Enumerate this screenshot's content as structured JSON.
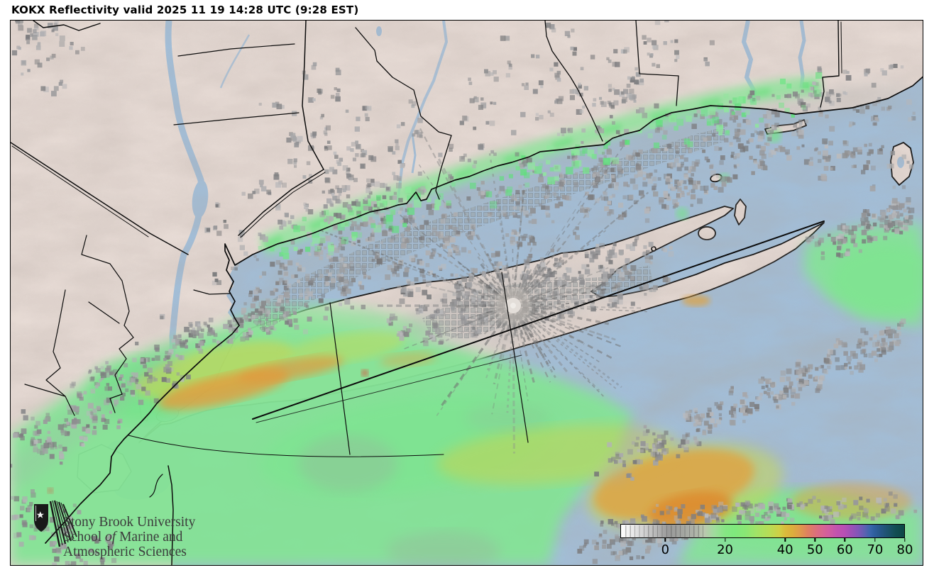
{
  "title": "KOKX Reflectivity valid 2025 11 19 14:28 UTC (9:28 EST)",
  "logo": {
    "line1": "Stony Brook University",
    "line2_pre": "School ",
    "line2_italic": "of",
    "line2_post": " Marine and",
    "line3": "Atmospheric Sciences"
  },
  "colorbar": {
    "tick_labels": [
      "0",
      "20",
      "40",
      "50",
      "60",
      "70",
      "80"
    ],
    "tick_positions_pct": [
      15.8,
      36.8,
      57.9,
      68.4,
      78.9,
      89.5,
      100
    ]
  },
  "colors": {
    "water": "#a2bfda",
    "land": "#e7dbd5",
    "echo_green": "#85e396",
    "echo_bright_green": "#6fe386",
    "echo_yellow": "#c6d653",
    "echo_orange": "#e3a03a",
    "clutter_gray": "#8f9496",
    "boundary": "#0b0b0b",
    "radar_center": "#e3ded9"
  }
}
